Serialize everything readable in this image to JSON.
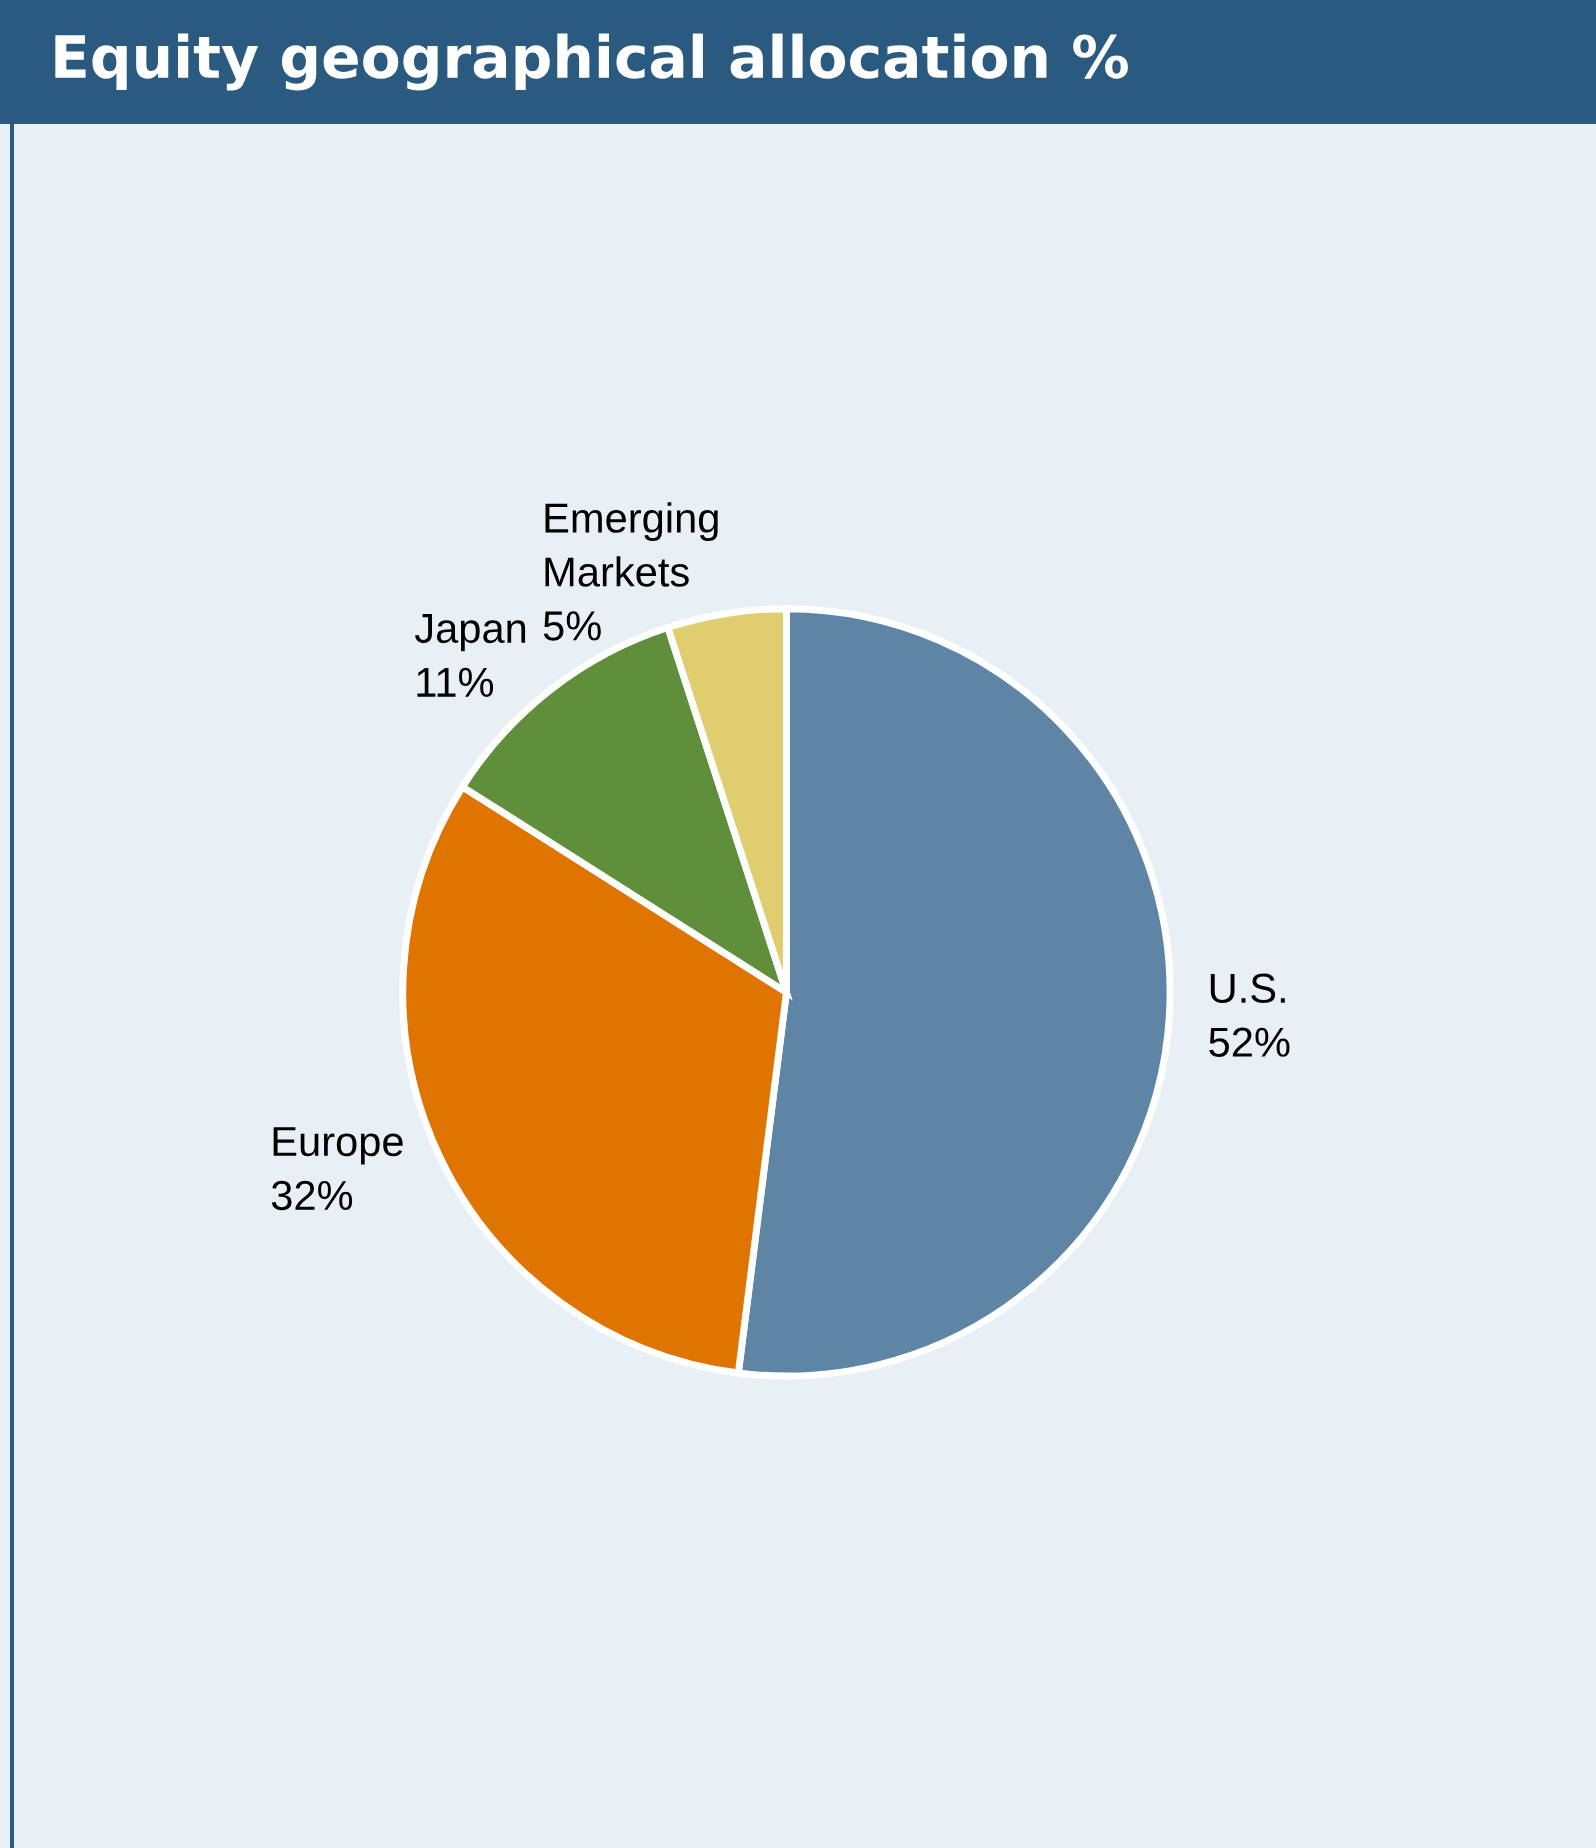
{
  "chart_data": {
    "type": "pie",
    "title": "Equity geographical allocation %",
    "categories": [
      "U.S.",
      "Europe",
      "Japan",
      "Emerging Markets"
    ],
    "values": [
      52,
      32,
      11,
      5
    ],
    "value_labels": [
      "52%",
      "32%",
      "11%",
      "5%"
    ],
    "colors": [
      "#5f85a6",
      "#e07400",
      "#5f8f3a",
      "#dfcd70"
    ],
    "legend": false
  }
}
